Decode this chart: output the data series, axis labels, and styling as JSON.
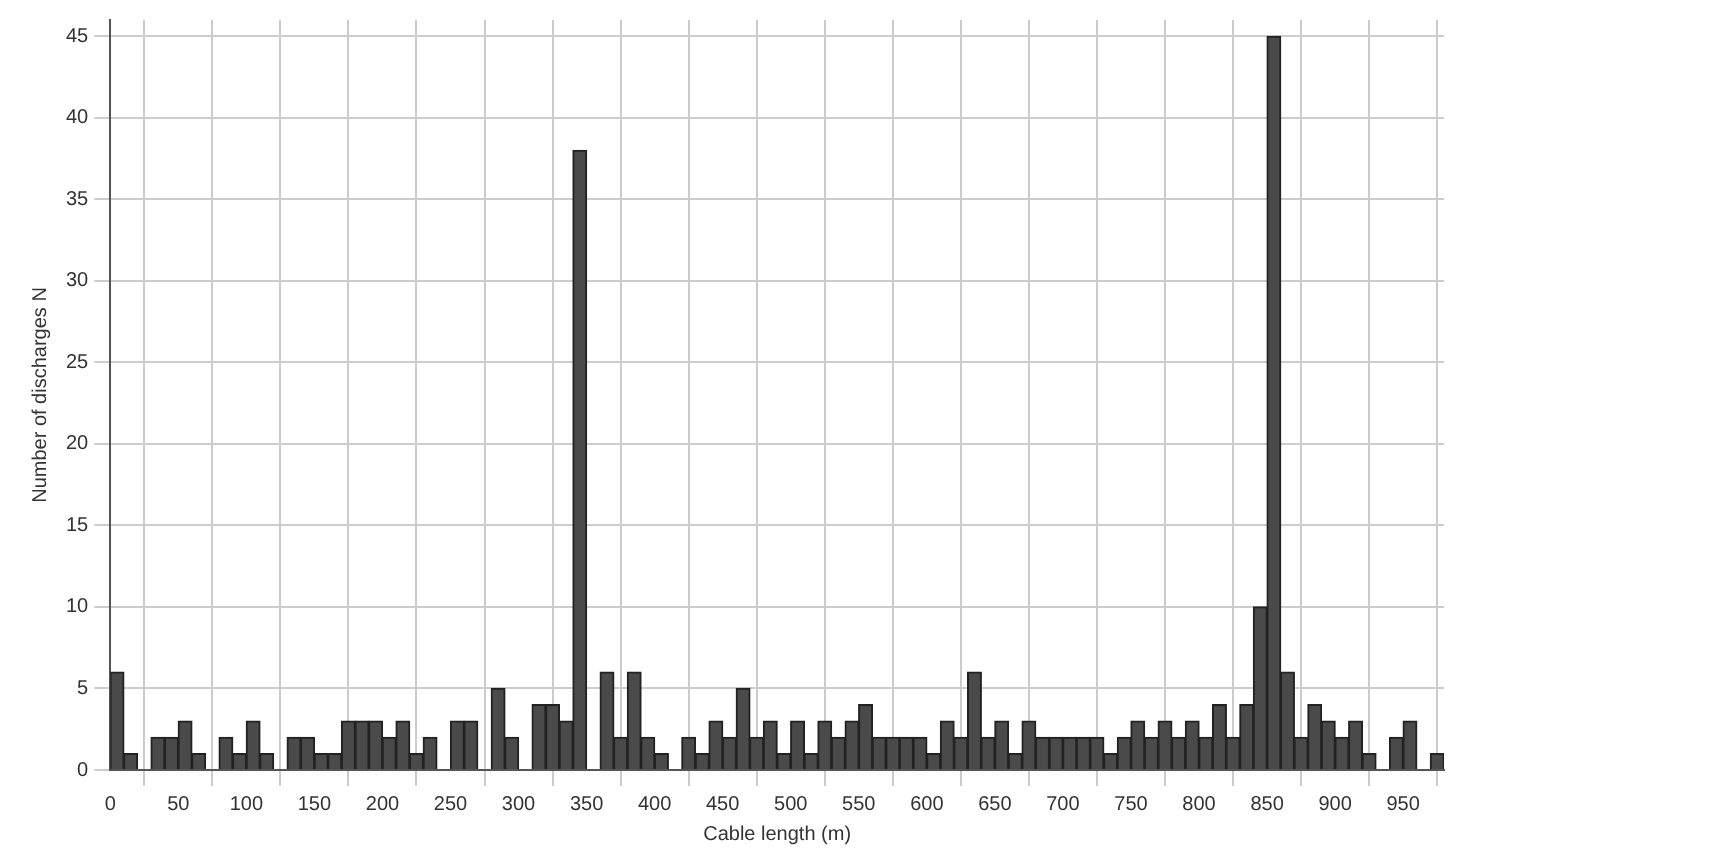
{
  "chart_data": {
    "type": "histogram",
    "xlabel": "Cable length (m)",
    "ylabel": "Number of discharges N",
    "bins": [
      0,
      10,
      20,
      30,
      40,
      50,
      60,
      70,
      80,
      90,
      100,
      110,
      120,
      130,
      140,
      150,
      160,
      170,
      180,
      190,
      200,
      210,
      220,
      230,
      240,
      250,
      260,
      270,
      280,
      290,
      300,
      310,
      320,
      330,
      340,
      350,
      360,
      370,
      380,
      390,
      400,
      410,
      420,
      430,
      440,
      450,
      460,
      470,
      480,
      490,
      500,
      510,
      520,
      530,
      540,
      550,
      560,
      570,
      580,
      590,
      600,
      610,
      620,
      630,
      640,
      650,
      660,
      670,
      680,
      690,
      700,
      710,
      720,
      730,
      740,
      750,
      760,
      770,
      780,
      790,
      800,
      810,
      820,
      830,
      840,
      850,
      860,
      870,
      880,
      890,
      900,
      910,
      920,
      930,
      940,
      950,
      960,
      970,
      980
    ],
    "values": [
      6,
      1,
      0,
      2,
      2,
      3,
      1,
      0,
      2,
      1,
      3,
      1,
      0,
      2,
      2,
      1,
      1,
      3,
      3,
      3,
      2,
      3,
      1,
      2,
      0,
      3,
      3,
      0,
      5,
      2,
      0,
      4,
      4,
      3,
      38,
      0,
      6,
      2,
      6,
      2,
      1,
      0,
      2,
      1,
      3,
      2,
      5,
      2,
      3,
      1,
      3,
      1,
      3,
      2,
      3,
      4,
      2,
      2,
      2,
      2,
      1,
      3,
      2,
      6,
      2,
      3,
      1,
      3,
      2,
      2,
      2,
      2,
      2,
      1,
      2,
      3,
      2,
      3,
      2,
      3,
      2,
      4,
      2,
      4,
      10,
      45,
      6,
      2,
      4,
      3,
      2,
      3,
      1,
      0,
      2,
      3,
      0,
      1
    ],
    "color": "#4a4a4a",
    "xlim": [
      0,
      980
    ],
    "xticks": [
      0,
      50,
      100,
      150,
      200,
      250,
      300,
      350,
      400,
      450,
      500,
      550,
      600,
      650,
      700,
      750,
      800,
      850,
      900,
      950
    ],
    "ylim": [
      0,
      46
    ],
    "yticks": [
      0,
      5,
      10,
      15,
      20,
      25,
      30,
      35,
      40,
      45
    ],
    "grid": true
  }
}
